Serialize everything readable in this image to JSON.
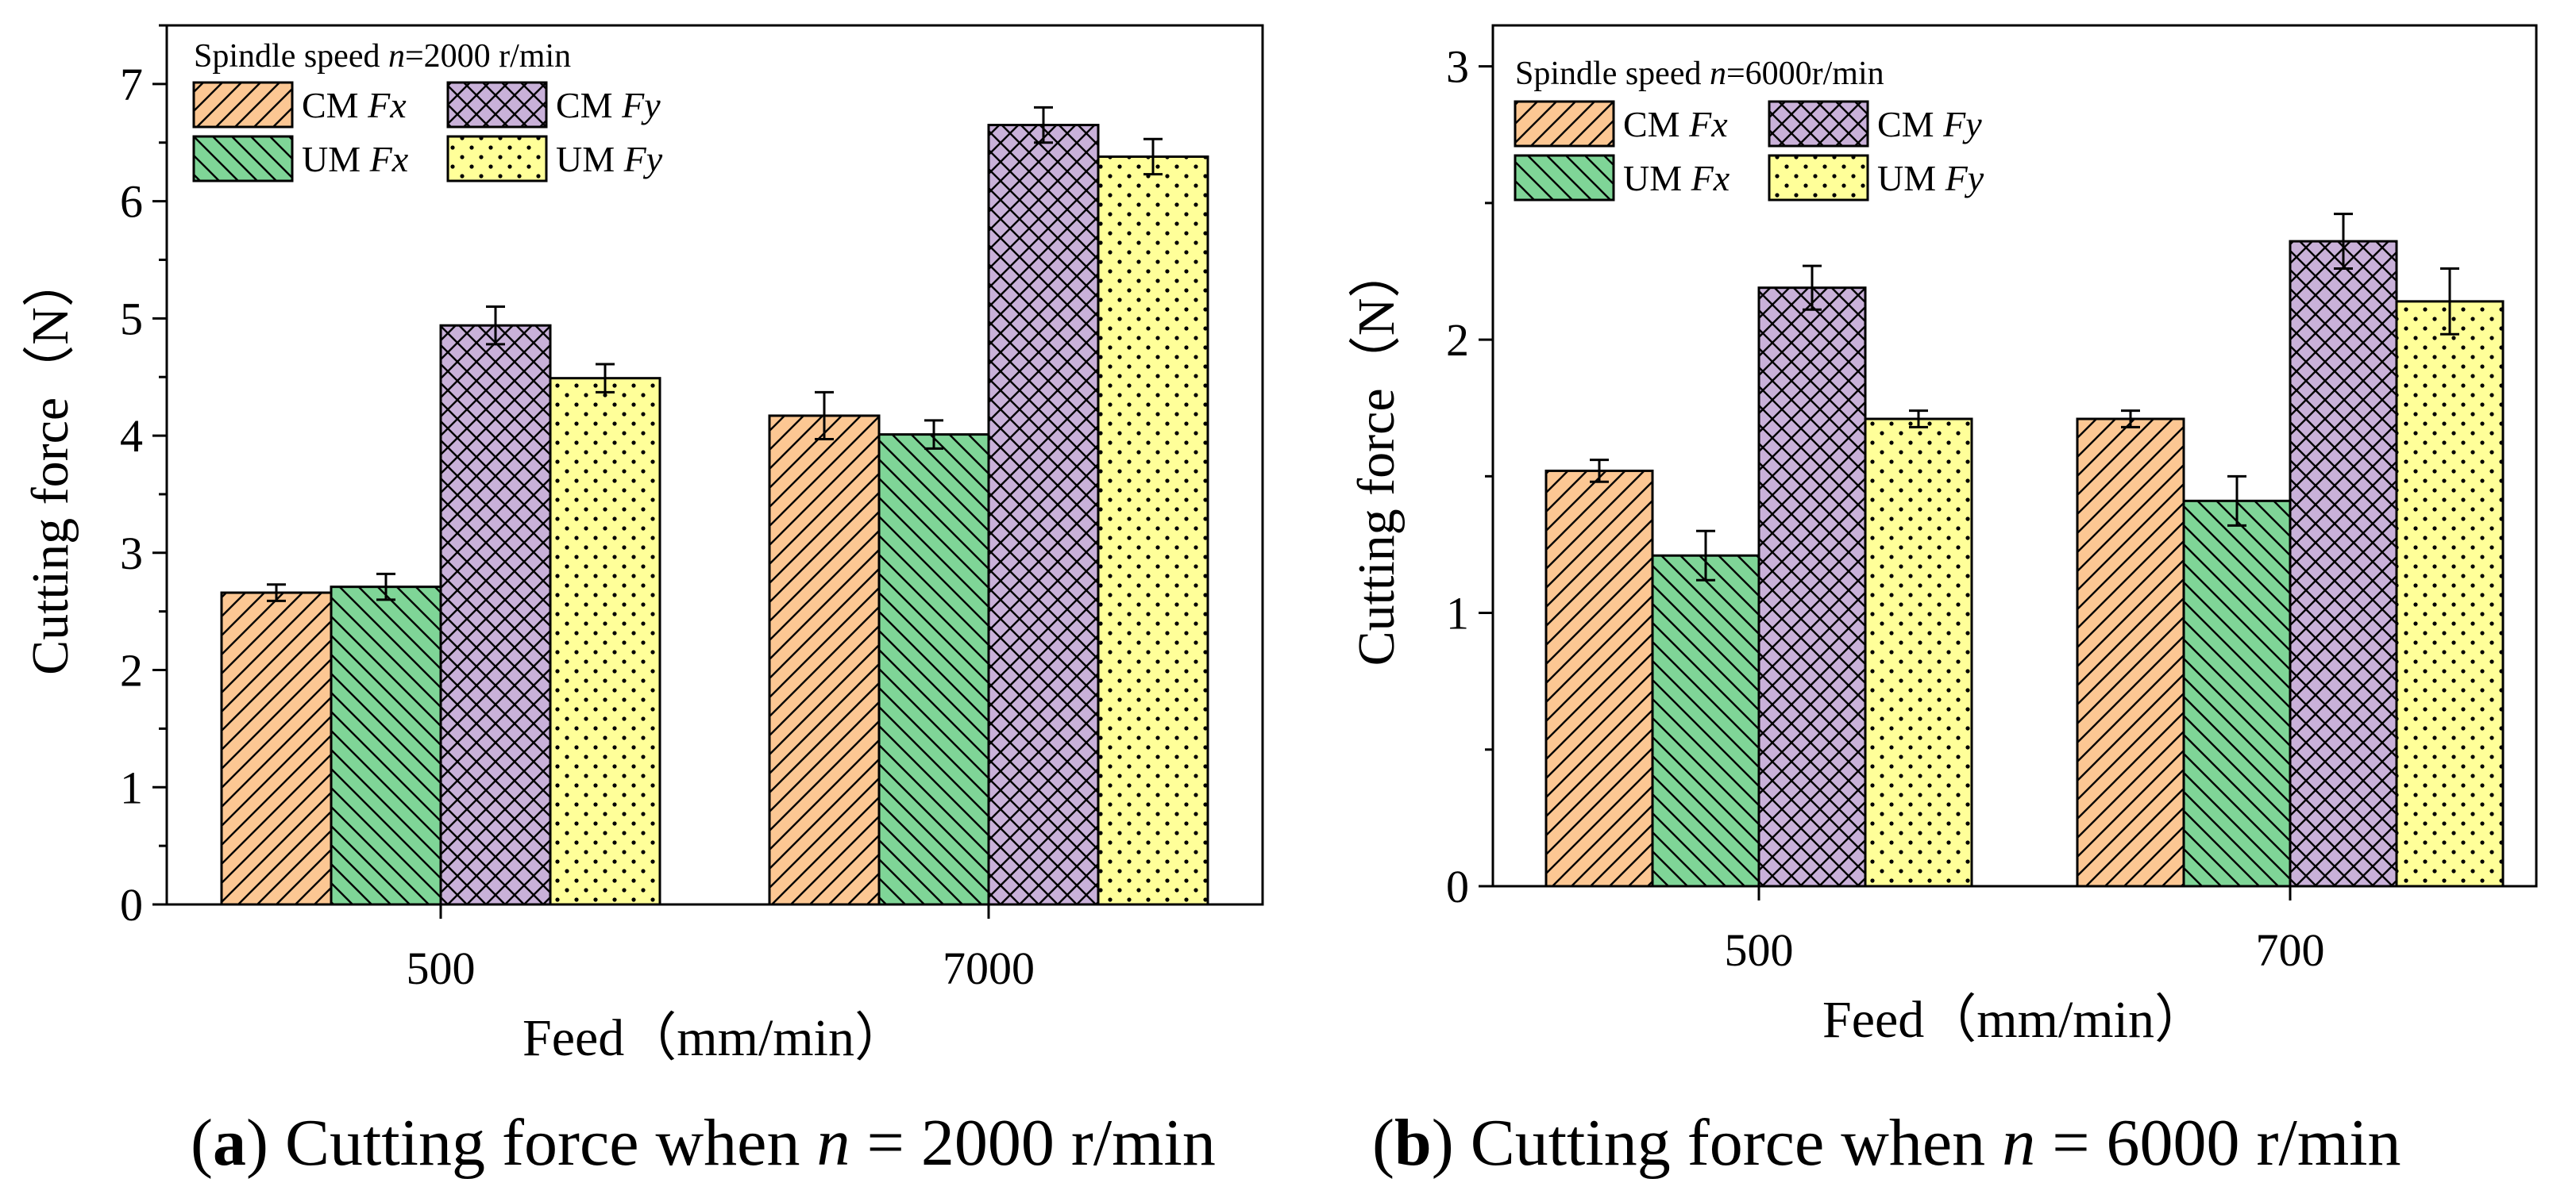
{
  "chart_data": [
    {
      "type": "bar",
      "panel_label": "a",
      "caption": {
        "label": "(a)",
        "prefix": "Cutting force when",
        "var": "n",
        "suffix": "= 2000 r/min"
      },
      "legend_title": {
        "prefix": "Spindle speed",
        "var": "n",
        "suffix": "=2000 r/min"
      },
      "xlabel": "Feed（mm/min）",
      "ylabel": "Cutting force（N）",
      "categories": [
        "500",
        "7000"
      ],
      "ylim": [
        0,
        7.5
      ],
      "yticks": [
        0,
        1,
        2,
        3,
        4,
        5,
        6,
        7
      ],
      "ytick_labels": [
        "0",
        "1",
        "2",
        "3",
        "4",
        "5",
        "6",
        "7"
      ],
      "series": [
        {
          "name": "CM Fx",
          "label_prefix": "CM",
          "label_var": "Fx",
          "color": "#fcc793",
          "pattern": "fwd",
          "values": [
            2.66,
            4.17
          ],
          "errors": [
            0.07,
            0.2
          ]
        },
        {
          "name": "UM Fx",
          "label_prefix": "UM",
          "label_var": "Fx",
          "color": "#7fd597",
          "pattern": "back",
          "values": [
            2.71,
            4.01
          ],
          "errors": [
            0.11,
            0.12
          ]
        },
        {
          "name": "CM Fy",
          "label_prefix": "CM",
          "label_var": "Fy",
          "color": "#c9b1d9",
          "pattern": "cross",
          "values": [
            4.94,
            6.65
          ],
          "errors": [
            0.16,
            0.15
          ]
        },
        {
          "name": "UM Fy",
          "label_prefix": "UM",
          "label_var": "Fy",
          "color": "#ffff99",
          "pattern": "dots",
          "values": [
            4.49,
            6.38
          ],
          "errors": [
            0.12,
            0.15
          ]
        }
      ]
    },
    {
      "type": "bar",
      "panel_label": "b",
      "caption": {
        "label": "(b)",
        "prefix": "Cutting force when",
        "var": "n",
        "suffix": "= 6000 r/min"
      },
      "legend_title": {
        "prefix": "Spindle speed",
        "var": "n",
        "suffix": "=6000r/min"
      },
      "xlabel": "Feed（mm/min）",
      "ylabel": "Cutting force（N）",
      "categories": [
        "500",
        "700"
      ],
      "ylim": [
        0,
        3.15
      ],
      "yticks": [
        0,
        1,
        2,
        3
      ],
      "ytick_labels": [
        "0",
        "1",
        "2",
        "3"
      ],
      "series": [
        {
          "name": "CM Fx",
          "label_prefix": "CM",
          "label_var": "Fx",
          "color": "#fcc793",
          "pattern": "fwd",
          "values": [
            1.52,
            1.71
          ],
          "errors": [
            0.04,
            0.03
          ]
        },
        {
          "name": "UM Fx",
          "label_prefix": "UM",
          "label_var": "Fx",
          "color": "#7fd597",
          "pattern": "back",
          "values": [
            1.21,
            1.41
          ],
          "errors": [
            0.09,
            0.09
          ]
        },
        {
          "name": "CM Fy",
          "label_prefix": "CM",
          "label_var": "Fy",
          "color": "#c9b1d9",
          "pattern": "cross",
          "values": [
            2.19,
            2.36
          ],
          "errors": [
            0.08,
            0.1
          ]
        },
        {
          "name": "UM Fy",
          "label_prefix": "UM",
          "label_var": "Fy",
          "color": "#ffff99",
          "pattern": "dots",
          "values": [
            1.71,
            2.14
          ],
          "errors": [
            0.03,
            0.12
          ]
        }
      ]
    }
  ]
}
